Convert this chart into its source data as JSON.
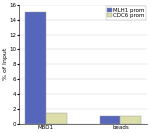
{
  "categories": [
    "MBD1",
    "beads"
  ],
  "series": [
    {
      "label": "MLH1 prom",
      "values": [
        15.0,
        1.0
      ],
      "color": "#5566BB"
    },
    {
      "label": "CDC6 prom",
      "values": [
        1.5,
        1.0
      ],
      "color": "#DDDDAA"
    }
  ],
  "ylabel": "% of Input",
  "ylim": [
    0,
    16
  ],
  "yticks": [
    0,
    2,
    4,
    6,
    8,
    10,
    12,
    14,
    16
  ],
  "bar_width": 0.28,
  "legend_fontsize": 4.0,
  "axis_fontsize": 4.5,
  "tick_fontsize": 4.0,
  "background_color": "#ffffff"
}
